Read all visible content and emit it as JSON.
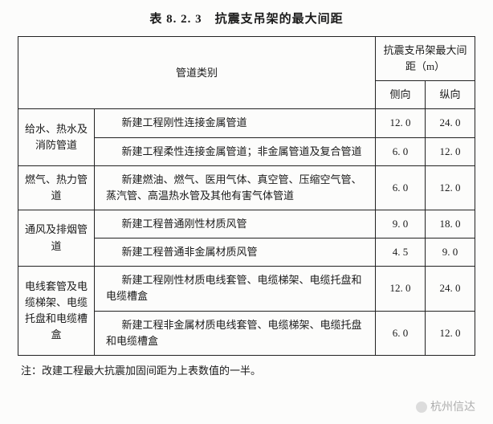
{
  "title": "表 8. 2. 3　抗震支吊架的最大间距",
  "header": {
    "pipeCategory": "管道类别",
    "maxSpacing": "抗震支吊架最大间距（m）",
    "lateral": "侧向",
    "longitudinal": "纵向"
  },
  "rows": [
    {
      "category": "给水、热水及消防管道",
      "items": [
        {
          "desc": "新建工程刚性连接金属管道",
          "lateral": "12. 0",
          "longitudinal": "24. 0"
        },
        {
          "desc": "新建工程柔性连接金属管道；非金属管道及复合管道",
          "lateral": "6. 0",
          "longitudinal": "12. 0"
        }
      ]
    },
    {
      "category": "燃气、热力管道",
      "items": [
        {
          "desc": "新建燃油、燃气、医用气体、真空管、压缩空气管、蒸汽管、高温热水管及其他有害气体管道",
          "lateral": "6. 0",
          "longitudinal": "12. 0"
        }
      ]
    },
    {
      "category": "通风及排烟管道",
      "items": [
        {
          "desc": "新建工程普通刚性材质风管",
          "lateral": "9. 0",
          "longitudinal": "18. 0"
        },
        {
          "desc": "新建工程普通非金属材质风管",
          "lateral": "4. 5",
          "longitudinal": "9. 0"
        }
      ]
    },
    {
      "category": "电线套管及电缆梯架、电缆托盘和电缆槽盒",
      "items": [
        {
          "desc": "新建工程刚性材质电线套管、电缆梯架、电缆托盘和电缆槽盒",
          "lateral": "12. 0",
          "longitudinal": "24. 0"
        },
        {
          "desc": "新建工程非金属材质电线套管、电缆梯架、电缆托盘和电缆槽盒",
          "lateral": "6. 0",
          "longitudinal": "12. 0"
        }
      ]
    }
  ],
  "footnote": "注：改建工程最大抗震加固间距为上表数值的一半。",
  "watermark": "杭州信达"
}
